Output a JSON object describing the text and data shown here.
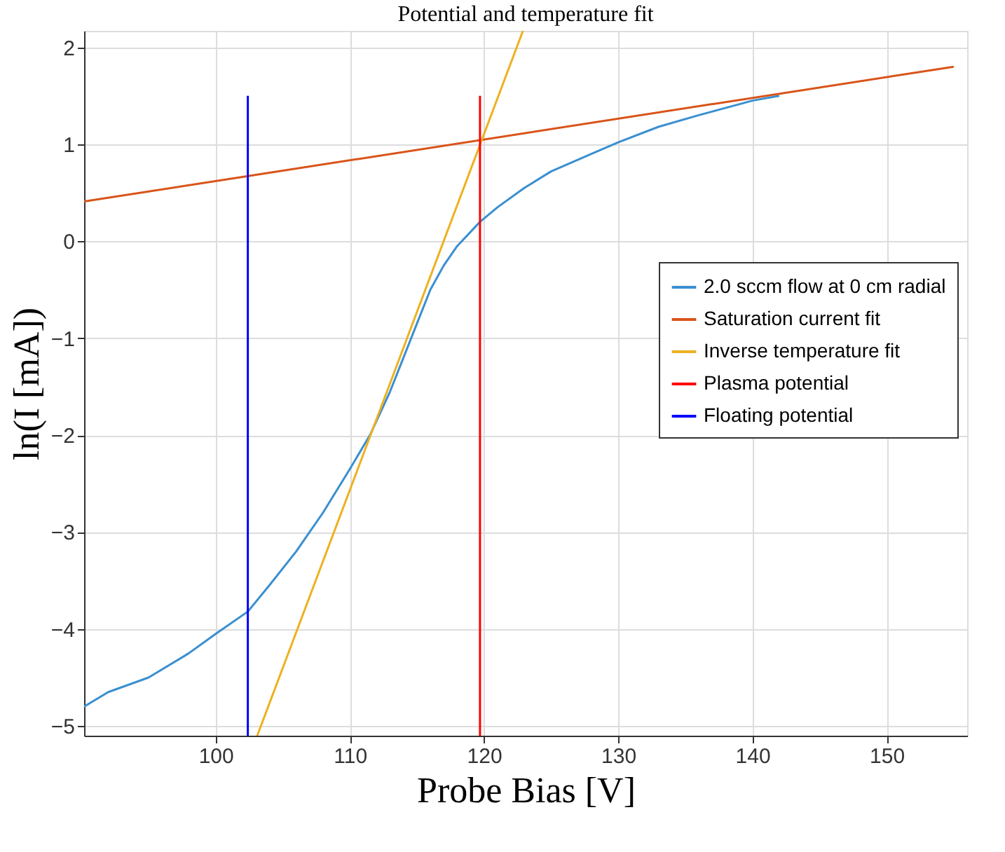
{
  "chart_data": {
    "type": "line",
    "title": "Potential and temperature fit",
    "xlabel": "Probe Bias [V]",
    "ylabel": "ln(I [mA])",
    "xlim": [
      90.2,
      156
    ],
    "ylim": [
      -5.1,
      2.17
    ],
    "xticks": [
      100,
      110,
      120,
      130,
      140,
      150
    ],
    "yticks": [
      -5,
      -4,
      -3,
      -2,
      -1,
      0,
      1,
      2
    ],
    "grid": true,
    "legend": "right",
    "series": [
      {
        "name": "2.0 sccm flow at 0 cm radial",
        "color": "#3a8fd0",
        "x": [
          90.2,
          92,
          95,
          98,
          100,
          102.4,
          104,
          106,
          108,
          110,
          111.5,
          113,
          114,
          115,
          116,
          117,
          118,
          119.7,
          121,
          123,
          125,
          128,
          130,
          133,
          136,
          140,
          142
        ],
        "values": [
          -4.8,
          -4.65,
          -4.5,
          -4.25,
          -4.05,
          -3.82,
          -3.55,
          -3.2,
          -2.8,
          -2.35,
          -2.0,
          -1.55,
          -1.2,
          -0.85,
          -0.5,
          -0.25,
          -0.05,
          0.2,
          0.35,
          0.55,
          0.72,
          0.9,
          1.02,
          1.18,
          1.3,
          1.45,
          1.5
        ]
      },
      {
        "name": "Saturation current fit",
        "color": "#d95319",
        "x": [
          90.2,
          155
        ],
        "values": [
          0.41,
          1.8
        ]
      },
      {
        "name": "Inverse temperature fit",
        "color": "#edb120",
        "x": [
          103.1,
          122.9
        ],
        "values": [
          -5.1,
          2.17
        ]
      },
      {
        "name": "Plasma potential",
        "color": "#ff0000",
        "x": [
          119.7,
          119.7
        ],
        "values": [
          -5.1,
          1.5
        ]
      },
      {
        "name": "Floating potential",
        "color": "#0000ff",
        "x": [
          102.4,
          102.4
        ],
        "values": [
          -5.1,
          1.5
        ]
      }
    ]
  }
}
